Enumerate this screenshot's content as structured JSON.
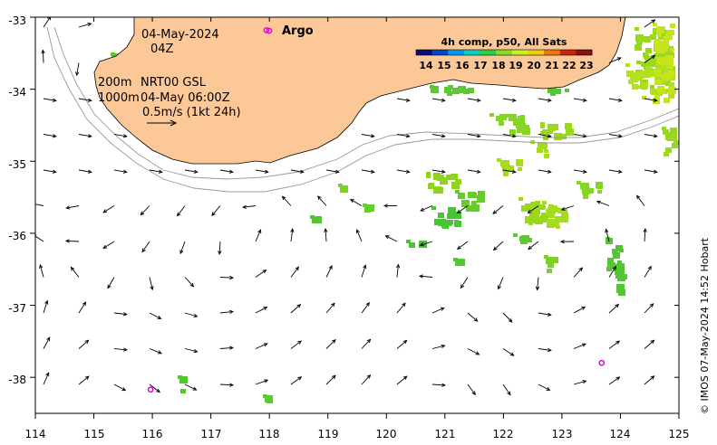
{
  "map": {
    "lon_ticks": [
      "114",
      "115",
      "116",
      "117",
      "118",
      "119",
      "120",
      "121",
      "122",
      "123",
      "124",
      "125"
    ],
    "lat_ticks": [
      "-33",
      "-34",
      "-35",
      "-36",
      "-37",
      "-38"
    ],
    "lon_range": [
      114,
      125
    ],
    "lat_range": [
      -38.5,
      -33
    ]
  },
  "annotations": {
    "date": "04-May-2024",
    "time": "04Z",
    "line1_left": "200m",
    "line1_right": "NRT00 GSL",
    "line2_left": "1000m",
    "line2_right": "04-May 06:00Z",
    "scale": "0.5m/s (1kt 24h)"
  },
  "legend": {
    "argo_label": "Argo",
    "colorbar_title": "4h comp, p50, All Sats",
    "colorbar_ticks": [
      "14",
      "15",
      "16",
      "17",
      "18",
      "19",
      "20",
      "21",
      "22",
      "23"
    ],
    "colorbar_colors": [
      "#0a0a7a",
      "#0044cc",
      "#0099ee",
      "#11ccbb",
      "#33cc44",
      "#88dd22",
      "#ccee22",
      "#eecc11",
      "#ee7711",
      "#cc2211",
      "#881111"
    ]
  },
  "argo_floats": [
    {
      "lon": 115.97,
      "lat": -38.17
    },
    {
      "lon": 123.68,
      "lat": -37.8
    },
    {
      "lon": 117.95,
      "lat": -33.18
    }
  ],
  "credit": "© IMOS 07-May-2024 14:52 Hobart",
  "colors": {
    "land": "#fdc898",
    "arrow": "#000000",
    "argo": "#dd00dd"
  }
}
